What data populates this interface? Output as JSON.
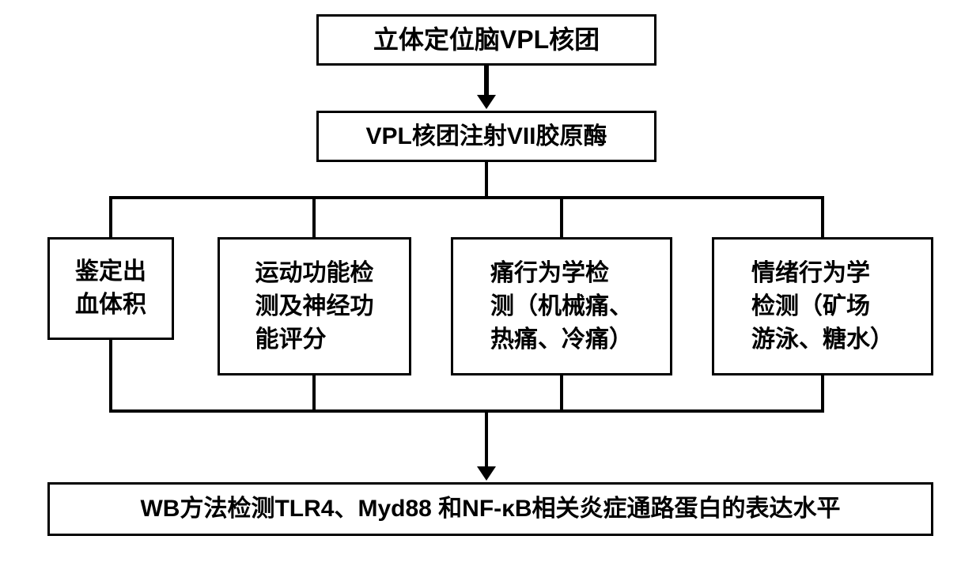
{
  "flowchart": {
    "type": "flowchart",
    "background_color": "#ffffff",
    "border_color": "#000000",
    "border_width": 3,
    "text_color": "#000000",
    "arrow_color": "#000000",
    "nodes": {
      "box1": {
        "text": "立体定位脑VPL核团",
        "fontsize": 32
      },
      "box2": {
        "text": "VPL核团注射VII胶原酶",
        "fontsize": 30
      },
      "box3": {
        "text": "鉴定出\n血体积",
        "fontsize": 30
      },
      "box4": {
        "text": "运动功能检\n测及神经功\n能评分",
        "fontsize": 30
      },
      "box5": {
        "text": "痛行为学检\n测（机械痛、\n热痛、冷痛）",
        "fontsize": 30
      },
      "box6": {
        "text": "情绪行为学\n检测（矿场\n游泳、糖水）",
        "fontsize": 30
      },
      "box7": {
        "text": "WB方法检测TLR4、Myd88 和NF-κB相关炎症通路蛋白的表达水平",
        "fontsize": 30
      }
    },
    "edges": [
      {
        "from": "box1",
        "to": "box2",
        "style": "arrow"
      },
      {
        "from": "box2",
        "to": "box3",
        "style": "branch"
      },
      {
        "from": "box2",
        "to": "box4",
        "style": "branch"
      },
      {
        "from": "box2",
        "to": "box5",
        "style": "branch"
      },
      {
        "from": "box2",
        "to": "box6",
        "style": "branch"
      },
      {
        "from": "box3",
        "to": "box7",
        "style": "merge-arrow"
      },
      {
        "from": "box4",
        "to": "box7",
        "style": "merge-arrow"
      },
      {
        "from": "box5",
        "to": "box7",
        "style": "merge-arrow"
      },
      {
        "from": "box6",
        "to": "box7",
        "style": "merge-arrow"
      }
    ]
  }
}
